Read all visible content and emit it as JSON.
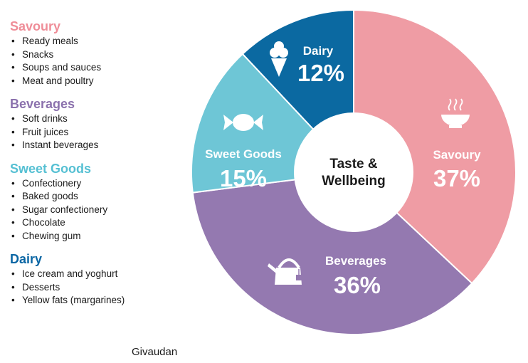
{
  "legend": {
    "groups": [
      {
        "title": "Savoury",
        "color": "#ef8d98",
        "items": [
          "Ready meals",
          "Snacks",
          "Soups and sauces",
          "Meat and poultry"
        ]
      },
      {
        "title": "Beverages",
        "color": "#8b71ad",
        "items": [
          "Soft drinks",
          "Fruit juices",
          "Instant beverages"
        ]
      },
      {
        "title": "Sweet Goods",
        "color": "#56c0d3",
        "items": [
          "Confectionery",
          "Baked goods",
          "Sugar confectionery",
          "Chocolate",
          "Chewing gum"
        ]
      },
      {
        "title": "Dairy",
        "color": "#0a66a4",
        "items": [
          "Ice cream and yoghurt",
          "Desserts",
          "Yellow fats (margarines)"
        ]
      }
    ]
  },
  "source": "Givaudan",
  "chart_data": {
    "type": "pie",
    "variant": "donut",
    "center_label": [
      "Taste &",
      "Wellbeing"
    ],
    "slices": [
      {
        "label": "Savoury",
        "value": 37,
        "value_label": "37%",
        "color": "#ef9ca4",
        "icon": "bowl-icon"
      },
      {
        "label": "Beverages",
        "value": 36,
        "value_label": "36%",
        "color": "#9479b0",
        "icon": "kettle-icon"
      },
      {
        "label": "Sweet Goods",
        "value": 15,
        "value_label": "15%",
        "color": "#6ec6d6",
        "icon": "candy-icon"
      },
      {
        "label": "Dairy",
        "value": 12,
        "value_label": "12%",
        "color": "#0b69a1",
        "icon": "ice-cream-icon"
      }
    ]
  }
}
